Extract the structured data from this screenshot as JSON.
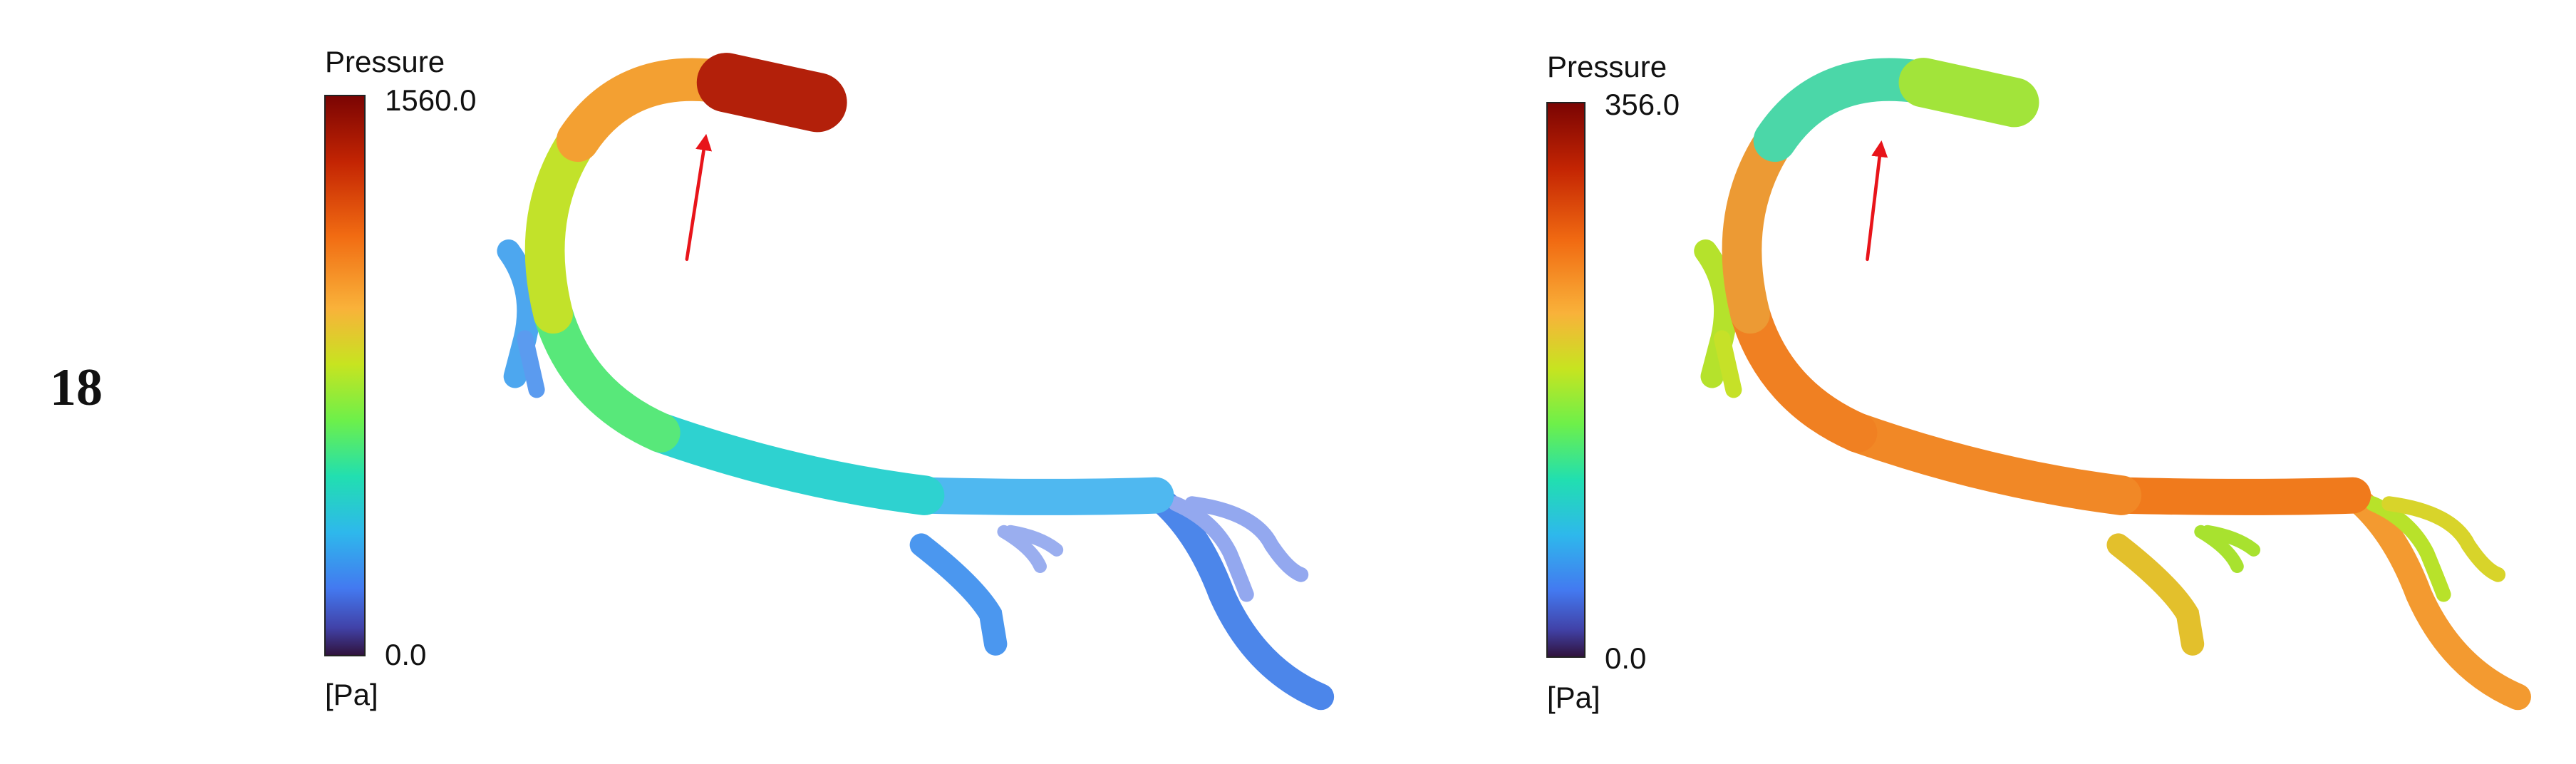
{
  "figure_number": "18",
  "panels": [
    {
      "legend": {
        "title": "Pressure",
        "max": "1560.0",
        "min": "0.0",
        "unit": "[Pa]"
      }
    },
    {
      "legend": {
        "title": "Pressure",
        "max": "356.0",
        "min": "0.0",
        "unit": "[Pa]"
      }
    }
  ]
}
